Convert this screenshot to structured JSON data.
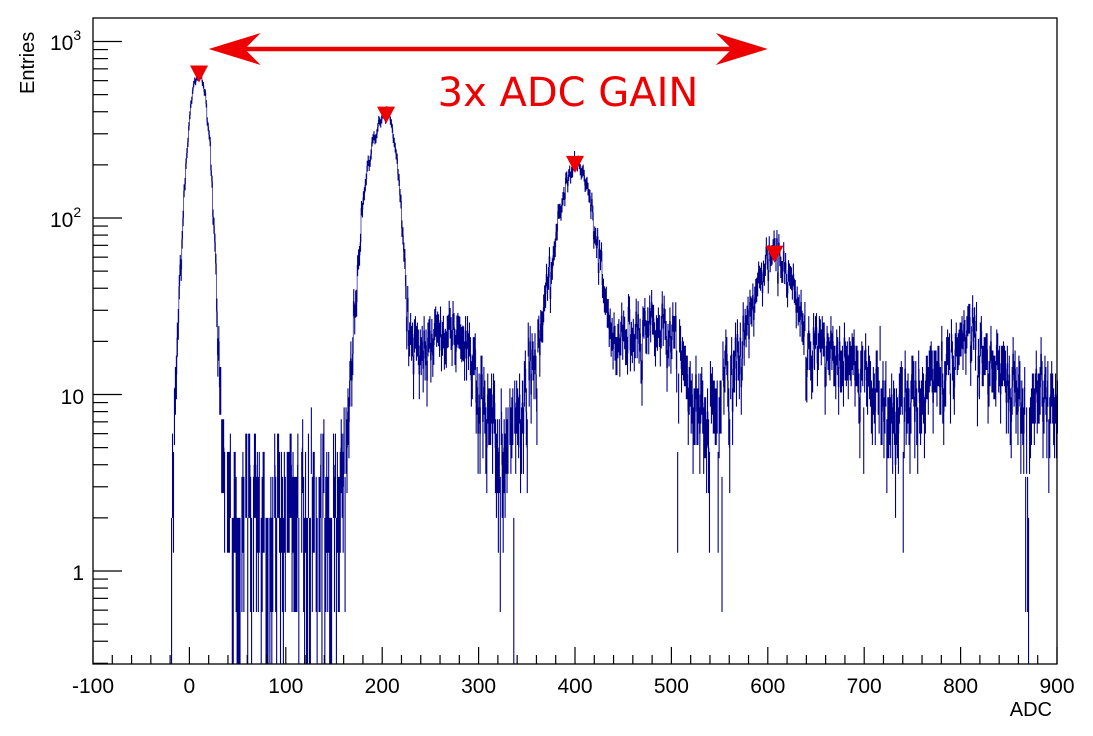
{
  "chart_data": {
    "type": "histogram",
    "xlabel": "ADC",
    "ylabel": "Entries",
    "xlim": [
      -100,
      900
    ],
    "ylim": [
      0.3,
      1300
    ],
    "yscale": "log",
    "grid": false,
    "legend": "none",
    "x_ticks": [
      "-100",
      "0",
      "100",
      "200",
      "300",
      "400",
      "500",
      "600",
      "700",
      "800",
      "900"
    ],
    "y_tick_labels": {
      "mantissa_1000": "10",
      "exp_1000": "3",
      "mantissa_100": "10",
      "exp_100": "2",
      "label_10": "10",
      "label_1": "1"
    },
    "series_color": "#00008b",
    "marker_color": "#ee0000",
    "annotation": {
      "text": "3x ADC GAIN",
      "arrow_from_x": 20,
      "arrow_to_x": 600,
      "color": "#ee0000"
    },
    "peaks": [
      {
        "x": 10,
        "y": 650
      },
      {
        "x": 204,
        "y": 380
      },
      {
        "x": 400,
        "y": 200
      },
      {
        "x": 607,
        "y": 62
      }
    ],
    "spectrum": [
      [
        -20,
        0
      ],
      [
        -16,
        5
      ],
      [
        -12,
        25
      ],
      [
        -8,
        80
      ],
      [
        -4,
        200
      ],
      [
        0,
        380
      ],
      [
        4,
        560
      ],
      [
        8,
        650
      ],
      [
        12,
        620
      ],
      [
        16,
        500
      ],
      [
        20,
        300
      ],
      [
        24,
        120
      ],
      [
        28,
        30
      ],
      [
        32,
        6
      ],
      [
        36,
        2
      ],
      [
        40,
        2
      ],
      [
        60,
        2
      ],
      [
        80,
        2
      ],
      [
        100,
        2
      ],
      [
        120,
        2
      ],
      [
        140,
        2
      ],
      [
        155,
        2
      ],
      [
        160,
        3
      ],
      [
        164,
        6
      ],
      [
        168,
        15
      ],
      [
        172,
        35
      ],
      [
        176,
        70
      ],
      [
        180,
        120
      ],
      [
        184,
        180
      ],
      [
        188,
        240
      ],
      [
        192,
        300
      ],
      [
        196,
        350
      ],
      [
        200,
        380
      ],
      [
        204,
        390
      ],
      [
        208,
        360
      ],
      [
        212,
        290
      ],
      [
        216,
        180
      ],
      [
        220,
        90
      ],
      [
        224,
        40
      ],
      [
        228,
        20
      ],
      [
        232,
        16
      ],
      [
        240,
        18
      ],
      [
        250,
        20
      ],
      [
        260,
        22
      ],
      [
        270,
        24
      ],
      [
        280,
        22
      ],
      [
        290,
        18
      ],
      [
        300,
        13
      ],
      [
        310,
        8
      ],
      [
        318,
        5
      ],
      [
        325,
        4
      ],
      [
        332,
        5
      ],
      [
        340,
        8
      ],
      [
        350,
        12
      ],
      [
        360,
        18
      ],
      [
        368,
        30
      ],
      [
        375,
        50
      ],
      [
        382,
        90
      ],
      [
        388,
        140
      ],
      [
        394,
        185
      ],
      [
        400,
        205
      ],
      [
        406,
        190
      ],
      [
        412,
        150
      ],
      [
        418,
        100
      ],
      [
        424,
        60
      ],
      [
        430,
        35
      ],
      [
        436,
        22
      ],
      [
        445,
        20
      ],
      [
        460,
        24
      ],
      [
        475,
        26
      ],
      [
        490,
        25
      ],
      [
        505,
        18
      ],
      [
        515,
        12
      ],
      [
        525,
        9
      ],
      [
        535,
        8
      ],
      [
        545,
        9
      ],
      [
        560,
        12
      ],
      [
        575,
        20
      ],
      [
        585,
        35
      ],
      [
        595,
        50
      ],
      [
        605,
        63
      ],
      [
        615,
        58
      ],
      [
        622,
        45
      ],
      [
        630,
        30
      ],
      [
        640,
        20
      ],
      [
        660,
        18
      ],
      [
        680,
        16
      ],
      [
        700,
        14
      ],
      [
        715,
        10
      ],
      [
        725,
        8
      ],
      [
        740,
        8
      ],
      [
        755,
        9
      ],
      [
        770,
        11
      ],
      [
        785,
        14
      ],
      [
        800,
        19
      ],
      [
        812,
        22
      ],
      [
        822,
        19
      ],
      [
        835,
        14
      ],
      [
        850,
        10
      ],
      [
        870,
        9
      ],
      [
        885,
        10
      ],
      [
        900,
        10
      ]
    ]
  }
}
